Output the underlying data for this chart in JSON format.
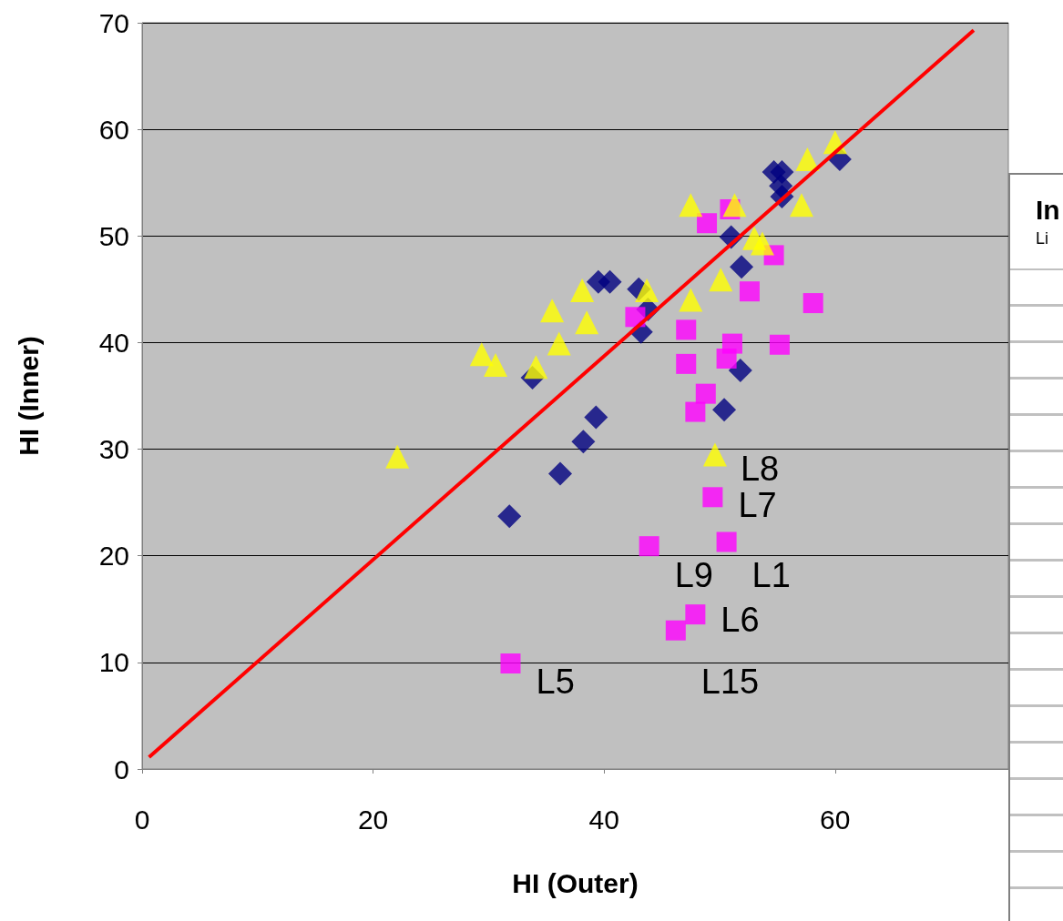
{
  "chart_data": {
    "type": "scatter",
    "xlabel": "HI (Outer)",
    "ylabel": "HI (Inner)",
    "xlim": [
      0,
      75
    ],
    "xticks": [
      0,
      20,
      40,
      60
    ],
    "ylim": [
      0,
      70
    ],
    "yticks": [
      0,
      10,
      20,
      30,
      40,
      50,
      60,
      70
    ],
    "grid": "y",
    "series": [
      {
        "color": "#000080",
        "marker": "diamond",
        "x": [
          33.8,
          31.8,
          36.2,
          38.2,
          39.3,
          39.5,
          40.5,
          43.0,
          43.2,
          43.8,
          50.4,
          51.8,
          51.0,
          51.9,
          54.7,
          55.4,
          55.3,
          55.4,
          60.4
        ],
        "values": [
          36.7,
          23.7,
          27.7,
          30.7,
          33.0,
          45.7,
          45.7,
          45.0,
          41.0,
          43.1,
          33.7,
          37.4,
          49.9,
          47.1,
          56.0,
          56.0,
          54.7,
          53.7,
          57.2
        ]
      },
      {
        "color": "#ff00ff",
        "marker": "square",
        "x": [
          31.9,
          43.9,
          49.4,
          50.6,
          46.2,
          47.9,
          47.9,
          48.8,
          47.1,
          47.1,
          42.7,
          51.1,
          50.6,
          55.2,
          58.1,
          52.6,
          54.7,
          48.9,
          50.9
        ],
        "values": [
          9.9,
          20.9,
          25.5,
          21.3,
          13.0,
          14.5,
          33.5,
          35.2,
          38.0,
          41.2,
          42.4,
          39.9,
          38.5,
          39.8,
          43.7,
          44.8,
          48.2,
          51.2,
          52.5
        ]
      },
      {
        "color": "#ffff00",
        "marker": "triangle",
        "x": [
          22.1,
          29.4,
          30.6,
          34.1,
          35.5,
          36.1,
          38.1,
          38.5,
          43.7,
          47.5,
          47.5,
          50.1,
          51.3,
          53.0,
          53.7,
          57.1,
          57.6,
          60.0,
          49.6
        ],
        "values": [
          29.3,
          38.9,
          37.9,
          37.7,
          43.0,
          39.9,
          44.9,
          41.9,
          44.9,
          44.0,
          52.9,
          45.9,
          52.9,
          49.8,
          49.3,
          52.9,
          57.2,
          58.8,
          29.5
        ]
      },
      {
        "type": "line",
        "color": "#ff0000",
        "marker": "none",
        "line_style": "solid",
        "x": [
          0.6,
          72.0
        ],
        "values": [
          1.1,
          69.3
        ]
      }
    ],
    "annotations": [
      {
        "text": "L8",
        "x": 49.6,
        "y": 29.5
      },
      {
        "text": "L7",
        "x": 49.4,
        "y": 25.5
      },
      {
        "text": "L1",
        "x": 50.6,
        "y": 21.3
      },
      {
        "text": "L9",
        "x": 43.9,
        "y": 20.9
      },
      {
        "text": "L6",
        "x": 47.9,
        "y": 14.5
      },
      {
        "text": "L15",
        "x": 46.2,
        "y": 13.0
      },
      {
        "text": "L5",
        "x": 31.9,
        "y": 9.9
      },
      "In",
      "Li"
    ]
  }
}
